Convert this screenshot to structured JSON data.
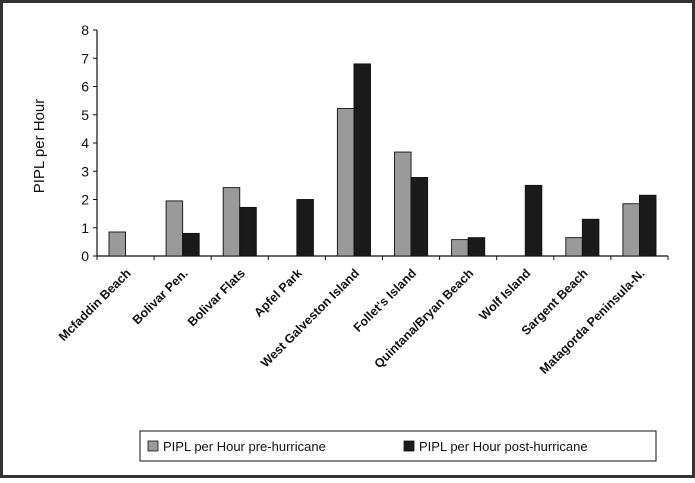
{
  "chart_data": {
    "type": "bar",
    "title": "",
    "xlabel": "",
    "ylabel": "PIPL per Hour",
    "ylim": [
      0,
      8
    ],
    "yticks": [
      "0",
      "1",
      "2",
      "3",
      "4",
      "5",
      "6",
      "7",
      "8"
    ],
    "grid": false,
    "legend_position": "bottom",
    "categories": [
      "Mcfaddin Beach",
      "Bolivar Pen.",
      "Bolivar Flats",
      "Apfel Park",
      "West Galveston Island",
      "Follet's Island",
      "Quintana/Bryan Beach",
      "Wolf Island",
      "Sargent Beach",
      "Matagorda Peninsula-N."
    ],
    "series": [
      {
        "name": "PIPL per Hour pre-hurricane",
        "color": "#9a9a9a",
        "values": [
          0.85,
          1.95,
          2.42,
          null,
          5.22,
          3.68,
          0.58,
          null,
          0.65,
          1.85
        ]
      },
      {
        "name": "PIPL per Hour post-hurricane",
        "color": "#1a1a1a",
        "values": [
          null,
          0.8,
          1.72,
          2.0,
          6.8,
          2.78,
          0.65,
          2.5,
          1.3,
          2.15
        ]
      }
    ]
  }
}
